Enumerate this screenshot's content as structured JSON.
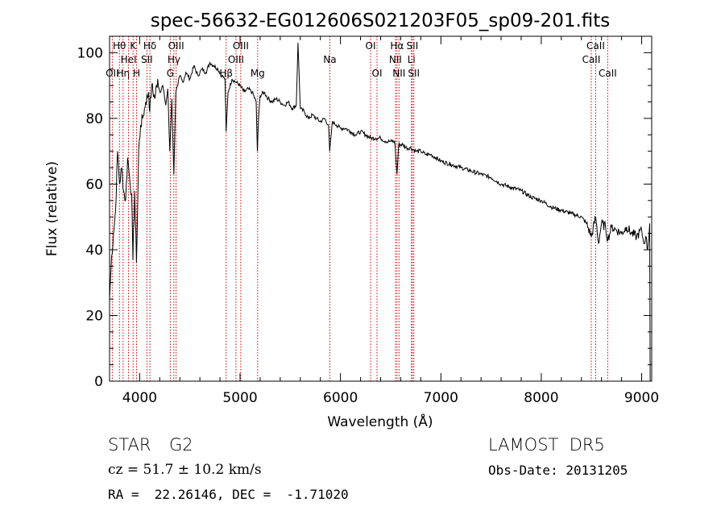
{
  "chart_data": {
    "type": "line",
    "title": "spec-56632-EG012606S021203F05_sp09-201.fits",
    "xlabel": "Wavelength (Å)",
    "ylabel": "Flux (relative)",
    "xlim": [
      3700,
      9100
    ],
    "ylim": [
      0,
      105
    ],
    "xticks": [
      4000,
      5000,
      6000,
      7000,
      8000,
      9000
    ],
    "yticks": [
      0,
      20,
      40,
      60,
      80,
      100
    ],
    "grid": false,
    "series": [
      {
        "x": [
          3700,
          3720,
          3740,
          3760,
          3780,
          3800,
          3820,
          3840,
          3860,
          3880,
          3900,
          3920,
          3933,
          3950,
          3968,
          3990,
          4010,
          4030,
          4060,
          4090,
          4100,
          4120,
          4150,
          4180,
          4200,
          4230,
          4260,
          4280,
          4300,
          4320,
          4340,
          4360,
          4380,
          4400,
          4430,
          4460,
          4500,
          4540,
          4580,
          4620,
          4660,
          4700,
          4740,
          4780,
          4820,
          4850,
          4861,
          4880,
          4920,
          4960,
          5000,
          5040,
          5080,
          5120,
          5160,
          5172,
          5183,
          5200,
          5240,
          5280,
          5320,
          5360,
          5400,
          5440,
          5480,
          5520,
          5560,
          5577,
          5600,
          5640,
          5680,
          5720,
          5760,
          5800,
          5840,
          5880,
          5893,
          5920,
          5960,
          6000,
          6050,
          6100,
          6150,
          6200,
          6250,
          6300,
          6350,
          6400,
          6450,
          6500,
          6540,
          6563,
          6580,
          6620,
          6660,
          6700,
          6750,
          6800,
          6850,
          6900,
          6950,
          7000,
          7100,
          7200,
          7300,
          7400,
          7500,
          7600,
          7700,
          7800,
          7900,
          8000,
          8100,
          8200,
          8300,
          8400,
          8450,
          8500,
          8542,
          8570,
          8600,
          8640,
          8662,
          8700,
          8750,
          8800,
          8850,
          8900,
          8950,
          9000,
          9020,
          9040,
          9060,
          9080
        ],
        "y": [
          25,
          38,
          45,
          52,
          70,
          60,
          65,
          58,
          55,
          68,
          62,
          57,
          37,
          58,
          36,
          70,
          78,
          80,
          85,
          88,
          82,
          90,
          86,
          92,
          88,
          90,
          84,
          89,
          70,
          86,
          63,
          88,
          90,
          93,
          91,
          94,
          92,
          96,
          93,
          95,
          94,
          97,
          96,
          95,
          93,
          92,
          76,
          88,
          92,
          91,
          90,
          88,
          89,
          88,
          85,
          70,
          79,
          87,
          88,
          86,
          85,
          86,
          85,
          84,
          85,
          83,
          84,
          103,
          83,
          82,
          80,
          81,
          80,
          79,
          80,
          78,
          70,
          79,
          78,
          77,
          77,
          76,
          75,
          76,
          75,
          74,
          74,
          74,
          73,
          73,
          73,
          63,
          72,
          72,
          71,
          71,
          70,
          70,
          69,
          69,
          68,
          67,
          66,
          65,
          64,
          63,
          62,
          60,
          59,
          58,
          56,
          55,
          53,
          52,
          51,
          50,
          48,
          44,
          50,
          42,
          48,
          47,
          43,
          47,
          46,
          45,
          47,
          45,
          44,
          46,
          42,
          44,
          40,
          48
        ]
      }
    ],
    "lines": [
      {
        "name": "OII",
        "wave": 3727,
        "row": 3
      },
      {
        "name": "Hθ",
        "wave": 3798,
        "row": 1
      },
      {
        "name": "Hη",
        "wave": 3835,
        "row": 3
      },
      {
        "name": "HeI",
        "wave": 3889,
        "row": 2
      },
      {
        "name": "K",
        "wave": 3934,
        "row": 1
      },
      {
        "name": "H",
        "wave": 3969,
        "row": 3
      },
      {
        "name": "SII",
        "wave": 4072,
        "row": 2
      },
      {
        "name": "Hδ",
        "wave": 4102,
        "row": 1
      },
      {
        "name": "G",
        "wave": 4305,
        "row": 3
      },
      {
        "name": "Hγ",
        "wave": 4341,
        "row": 2
      },
      {
        "name": "OIII",
        "wave": 4363,
        "row": 1
      },
      {
        "name": "Hβ",
        "wave": 4861,
        "row": 3
      },
      {
        "name": "OIII",
        "wave": 4959,
        "row": 2
      },
      {
        "name": "OIII",
        "wave": 5007,
        "row": 1
      },
      {
        "name": "Mg",
        "wave": 5175,
        "row": 3
      },
      {
        "name": "Na",
        "wave": 5894,
        "row": 2
      },
      {
        "name": "OI",
        "wave": 6300,
        "row": 1
      },
      {
        "name": "OI",
        "wave": 6364,
        "row": 3
      },
      {
        "name": "NII",
        "wave": 6548,
        "row": 2
      },
      {
        "name": "Hα",
        "wave": 6563,
        "row": 1
      },
      {
        "name": "NII",
        "wave": 6583,
        "row": 3
      },
      {
        "name": "Li",
        "wave": 6707,
        "row": 2
      },
      {
        "name": "SII",
        "wave": 6716,
        "row": 1
      },
      {
        "name": "SII",
        "wave": 6731,
        "row": 3
      },
      {
        "name": "CaII",
        "wave": 8498,
        "row": 2
      },
      {
        "name": "CaII",
        "wave": 8542,
        "row": 1
      },
      {
        "name": "CaII",
        "wave": 8662,
        "row": 3
      }
    ],
    "line_color": "#cc0000"
  },
  "info": {
    "class": "STAR",
    "subclass": "G2",
    "survey": "LAMOST  DR5",
    "cz": "cz = 51.7 ± 10.2 km/s",
    "obs_date": "Obs-Date: 20131205",
    "coords": "RA =  22.26146, DEC =  -1.71020"
  }
}
